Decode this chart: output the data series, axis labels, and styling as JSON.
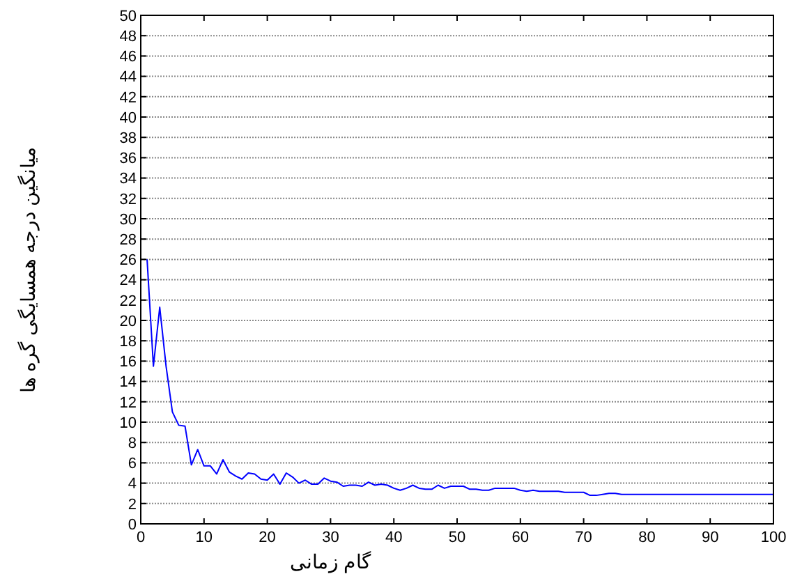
{
  "chart_data": {
    "type": "line",
    "xlabel": "گام زمانی",
    "ylabel": "میانگین درجه همسایگی گره ها",
    "xlim": [
      0,
      100
    ],
    "xticks": [
      0,
      10,
      20,
      30,
      40,
      50,
      60,
      70,
      80,
      90,
      100
    ],
    "ylim": [
      0,
      50
    ],
    "yticks": [
      0,
      2,
      4,
      6,
      8,
      10,
      12,
      14,
      16,
      18,
      20,
      22,
      24,
      26,
      28,
      30,
      32,
      34,
      36,
      38,
      40,
      42,
      44,
      46,
      48,
      50
    ],
    "grid": "y",
    "line_style": "solid",
    "marker": "none",
    "series": [
      {
        "color": "#0000ff",
        "x": [
          1,
          2,
          3,
          4,
          5,
          6,
          7,
          8,
          9,
          10,
          11,
          12,
          13,
          14,
          15,
          16,
          17,
          18,
          19,
          20,
          21,
          22,
          23,
          24,
          25,
          26,
          27,
          28,
          29,
          30,
          31,
          32,
          33,
          34,
          35,
          36,
          37,
          38,
          39,
          40,
          41,
          42,
          43,
          44,
          45,
          46,
          47,
          48,
          49,
          50,
          51,
          52,
          53,
          54,
          55,
          56,
          57,
          58,
          59,
          60,
          61,
          62,
          63,
          64,
          65,
          66,
          67,
          68,
          69,
          70,
          71,
          72,
          73,
          74,
          75,
          76,
          100
        ],
        "values": [
          26,
          15.5,
          21.3,
          15.5,
          11,
          9.7,
          9.6,
          5.8,
          7.3,
          5.7,
          5.7,
          4.9,
          6.3,
          5.1,
          4.7,
          4.4,
          5.0,
          4.9,
          4.4,
          4.3,
          4.9,
          3.9,
          5.0,
          4.6,
          4.0,
          4.3,
          3.9,
          3.9,
          4.5,
          4.2,
          4.1,
          3.7,
          3.8,
          3.8,
          3.7,
          4.1,
          3.8,
          3.9,
          3.8,
          3.5,
          3.3,
          3.5,
          3.8,
          3.5,
          3.4,
          3.4,
          3.8,
          3.5,
          3.7,
          3.7,
          3.7,
          3.4,
          3.4,
          3.3,
          3.3,
          3.5,
          3.5,
          3.5,
          3.5,
          3.3,
          3.2,
          3.3,
          3.2,
          3.2,
          3.2,
          3.2,
          3.1,
          3.1,
          3.1,
          3.1,
          2.8,
          2.8,
          2.9,
          3.0,
          3.0,
          2.9,
          2.9
        ]
      }
    ]
  }
}
